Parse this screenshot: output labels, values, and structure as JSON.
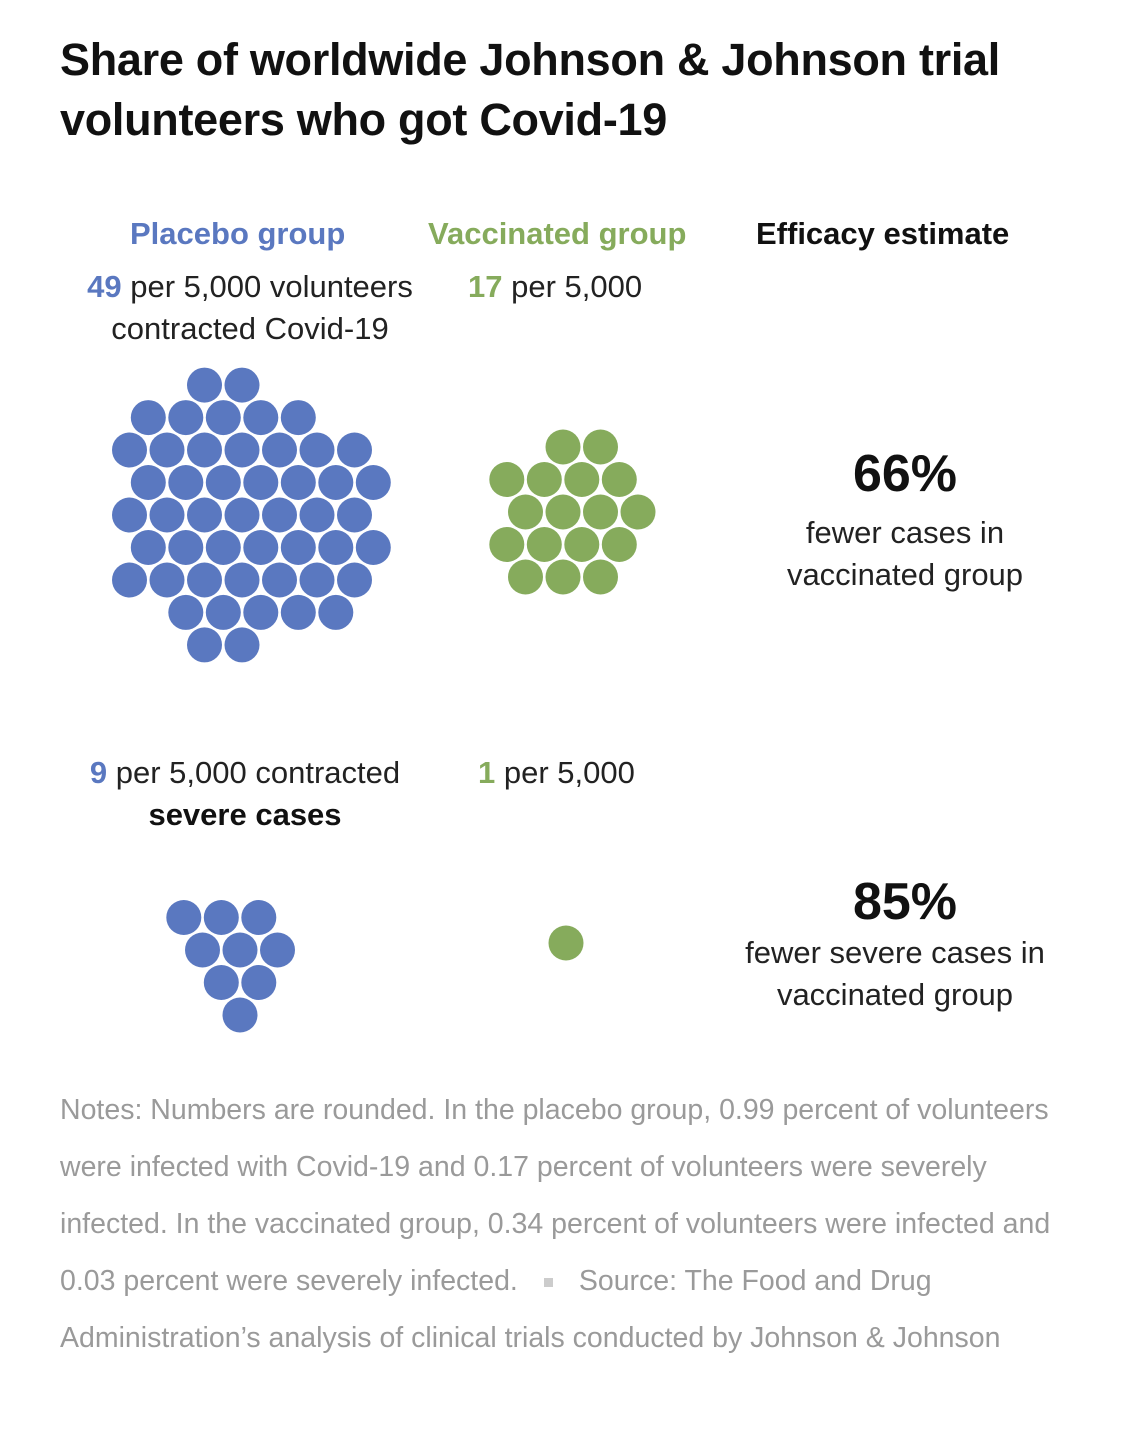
{
  "title": "Share of worldwide Johnson & Johnson trial volunteers who got Covid-19",
  "columns": {
    "placebo": "Placebo group",
    "vaccinated": "Vaccinated group",
    "efficacy": "Efficacy estimate"
  },
  "placebo_cases": {
    "number": "49",
    "text": " per 5,000 volunteers contracted Covid-19"
  },
  "vaccinated_cases": {
    "number": "17",
    "text": " per 5,000"
  },
  "placebo_severe": {
    "number": "9",
    "text": " per 5,000 contracted ",
    "bold": "severe cases"
  },
  "vaccinated_severe": {
    "number": "1",
    "text": " per 5,000"
  },
  "efficacy_cases": {
    "percent": "66%",
    "text": "fewer cases in vaccinated group"
  },
  "efficacy_severe": {
    "percent": "85%",
    "text": "fewer severe cases in vaccinated group"
  },
  "notes": {
    "text": "Notes: Numbers are rounded. In the placebo group, 0.99 percent of volunteers were infected with Covid-19 and 0.17 percent of volunteers were severely infected. In the vaccinated group, 0.34 percent of volunteers were infected and 0.03 percent were severely infected.",
    "source": "Source: The Food and Drug Administration’s analysis of clinical trials conducted by Johnson & Johnson"
  },
  "colors": {
    "placebo": "#5a78c0",
    "vaccinated": "#86ab5c"
  },
  "chart_data": {
    "type": "dot-cluster",
    "unit": "per 5,000 volunteers",
    "series": [
      {
        "name": "Placebo group",
        "cases": 49,
        "severe_cases": 9
      },
      {
        "name": "Vaccinated group",
        "cases": 17,
        "severe_cases": 1
      }
    ],
    "efficacy": {
      "cases_percent": 66,
      "severe_percent": 85
    }
  }
}
